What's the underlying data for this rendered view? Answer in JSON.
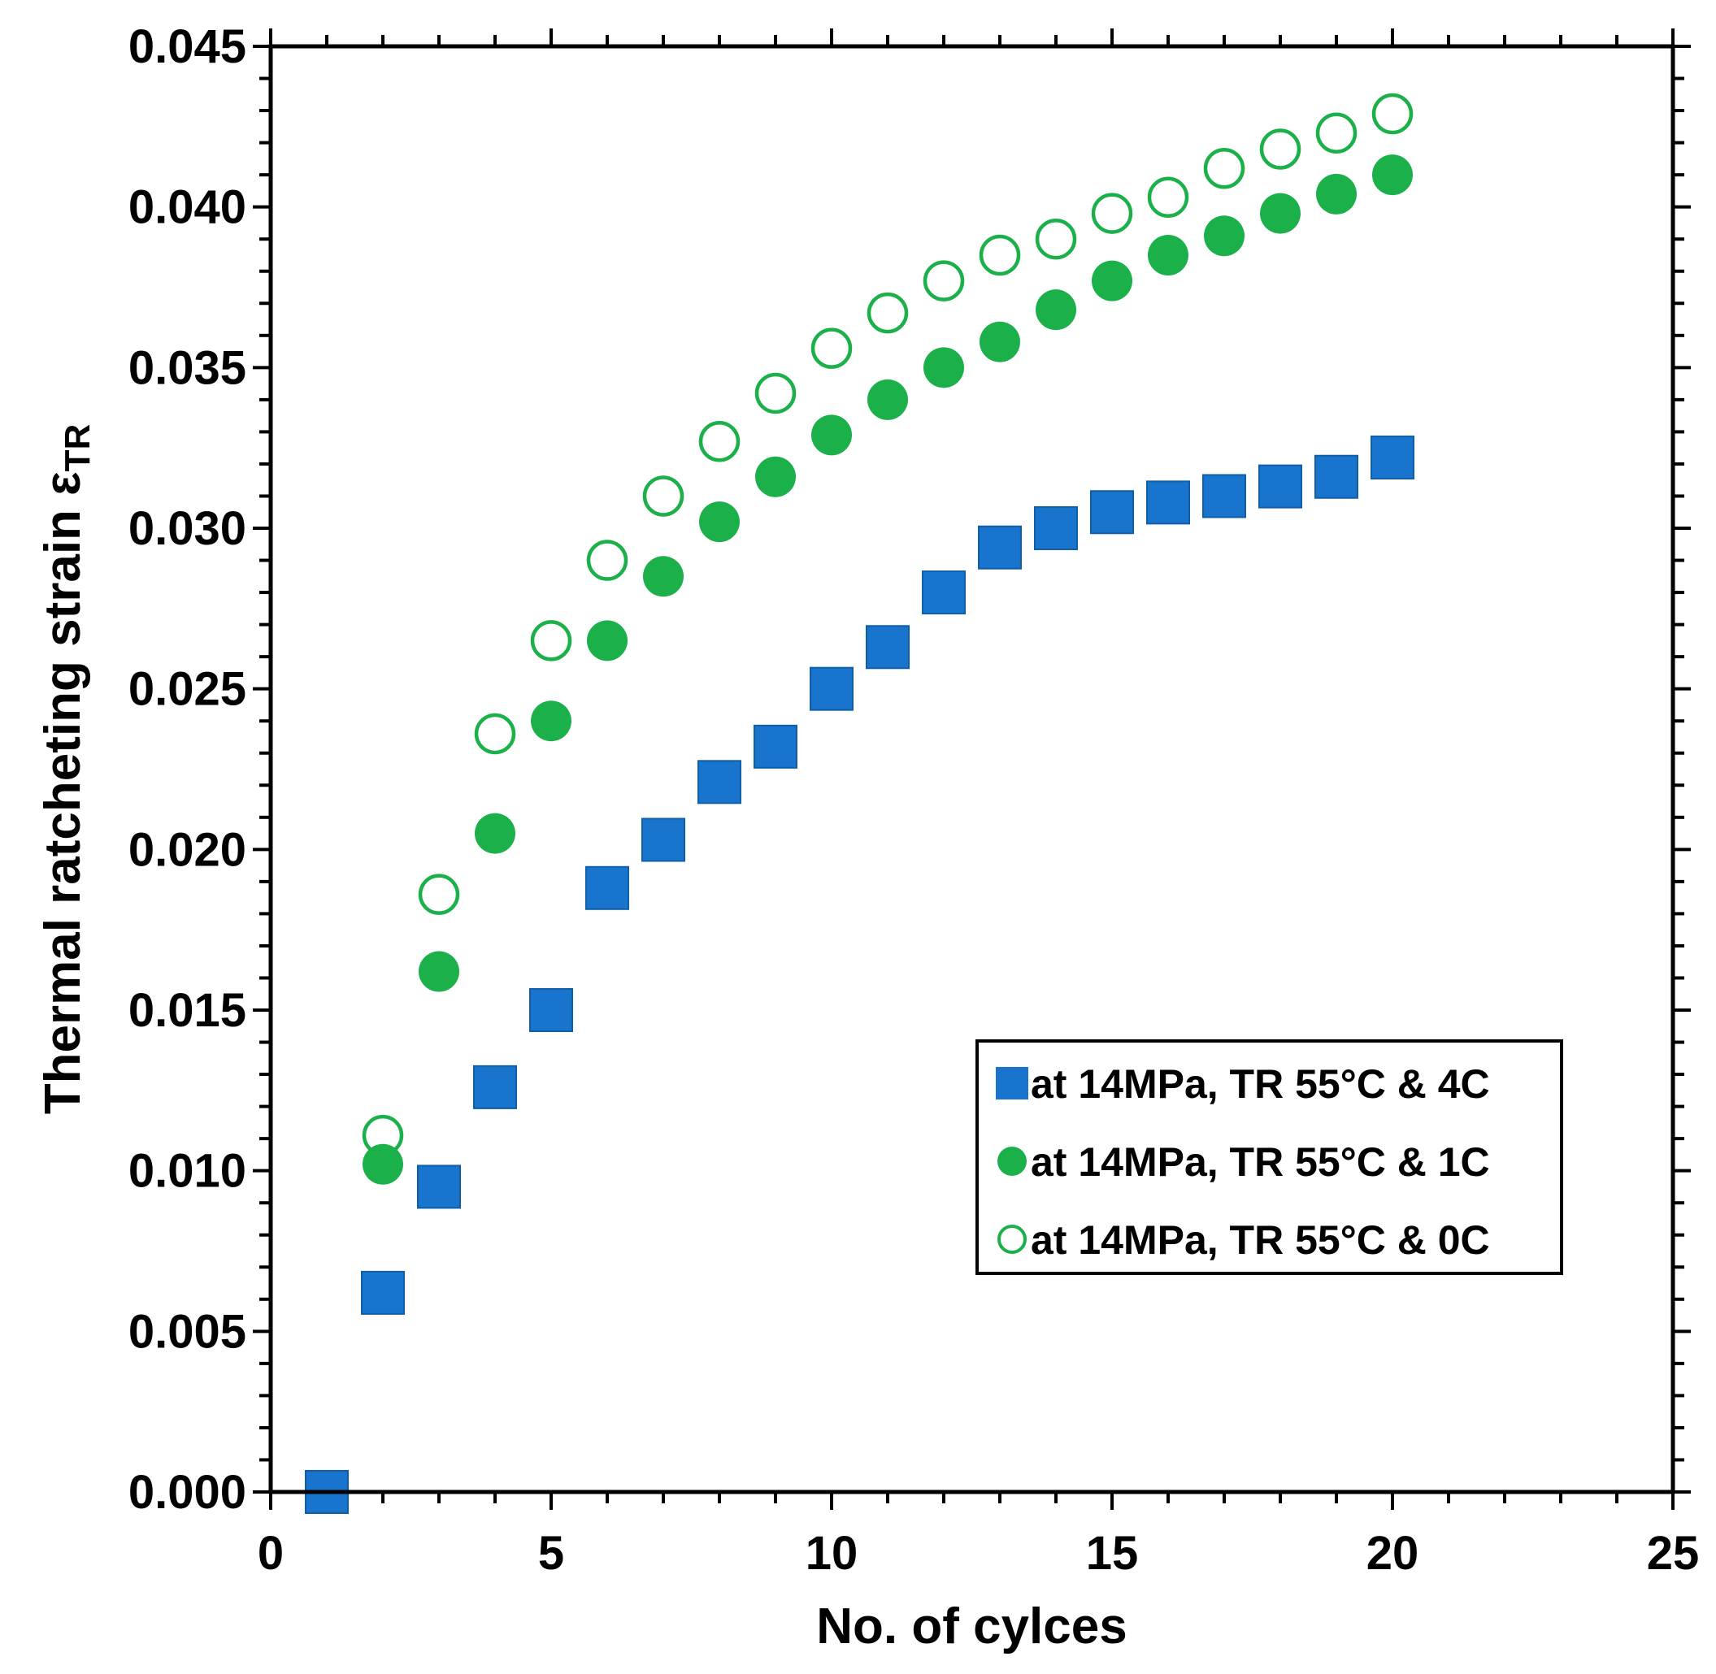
{
  "chart_data": {
    "type": "scatter",
    "xlabel": "No. of cylces",
    "ylabel_main": "Thermal ratcheting strain ε",
    "ylabel_sub": "TR",
    "xlim": [
      0,
      25
    ],
    "ylim": [
      0,
      0.045
    ],
    "x_ticks": [
      0,
      5,
      10,
      15,
      20,
      25
    ],
    "x_tick_labels": [
      "0",
      "5",
      "10",
      "15",
      "20",
      "25"
    ],
    "y_ticks": [
      0,
      0.005,
      0.01,
      0.015,
      0.02,
      0.025,
      0.03,
      0.035,
      0.04,
      0.045
    ],
    "y_tick_labels": [
      "0.000",
      "0.005",
      "0.010",
      "0.015",
      "0.020",
      "0.025",
      "0.030",
      "0.035",
      "0.040",
      "0.045"
    ],
    "grid": false,
    "legend_position": "lower-right",
    "x": [
      1,
      2,
      3,
      4,
      5,
      6,
      7,
      8,
      9,
      10,
      11,
      12,
      13,
      14,
      15,
      16,
      17,
      18,
      19,
      20
    ],
    "series": [
      {
        "name": "at 14MPa, TR 55°C & 4C",
        "marker": "square",
        "color": "#1874CD",
        "values": [
          0.0,
          0.0062,
          0.0095,
          0.0126,
          0.015,
          0.0188,
          0.0203,
          0.0221,
          0.0232,
          0.025,
          0.0263,
          0.028,
          0.0294,
          0.03,
          0.0305,
          0.0308,
          0.031,
          0.0313,
          0.0316,
          0.0322
        ]
      },
      {
        "name": "at 14MPa, TR 55°C & 1C",
        "marker": "filled-circle",
        "color": "#1CB04A",
        "values": [
          0.0,
          0.0102,
          0.0162,
          0.0205,
          0.024,
          0.0265,
          0.0285,
          0.0302,
          0.0316,
          0.0329,
          0.034,
          0.035,
          0.0358,
          0.0368,
          0.0377,
          0.0385,
          0.0391,
          0.0398,
          0.0404,
          0.041
        ]
      },
      {
        "name": "at 14MPa, TR 55°C & 0C",
        "marker": "open-circle",
        "color": "#1CB04A",
        "values": [
          0.0,
          0.0111,
          0.0186,
          0.0236,
          0.0265,
          0.029,
          0.031,
          0.0327,
          0.0342,
          0.0356,
          0.0367,
          0.0377,
          0.0385,
          0.039,
          0.0398,
          0.0403,
          0.0412,
          0.0418,
          0.0423,
          0.0429
        ]
      }
    ]
  }
}
